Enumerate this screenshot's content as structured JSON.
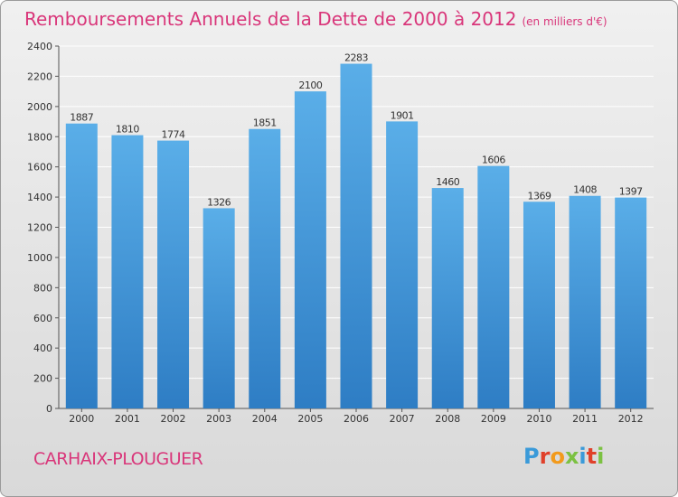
{
  "title": "Remboursements Annuels de la Dette de 2000 à 2012",
  "subtitle": "(en milliers d'€)",
  "location": "CARHAIX-PLOUGUER",
  "logo": {
    "text": "Proxiti",
    "letter_colors": [
      "#3a9ad9",
      "#e0402a",
      "#f29a1c",
      "#7cc142",
      "#3a9ad9",
      "#e0402a",
      "#7cc142"
    ]
  },
  "colors": {
    "title": "#d9367a",
    "bar_light": "#5aaee8",
    "bar_dark": "#2e7dc4"
  },
  "chart_data": {
    "type": "bar",
    "title": "Remboursements Annuels de la Dette de 2000 à 2012",
    "subtitle": "(en milliers d'€)",
    "categories": [
      "2000",
      "2001",
      "2002",
      "2003",
      "2004",
      "2005",
      "2006",
      "2007",
      "2008",
      "2009",
      "2010",
      "2011",
      "2012"
    ],
    "values": [
      1887,
      1810,
      1774,
      1326,
      1851,
      2100,
      2283,
      1901,
      1460,
      1606,
      1369,
      1408,
      1397
    ],
    "ylim": [
      0,
      2400
    ],
    "yticks": [
      0,
      200,
      400,
      600,
      800,
      1000,
      1200,
      1400,
      1600,
      1800,
      2000,
      2200,
      2400
    ],
    "grid": true,
    "legend": "none"
  }
}
